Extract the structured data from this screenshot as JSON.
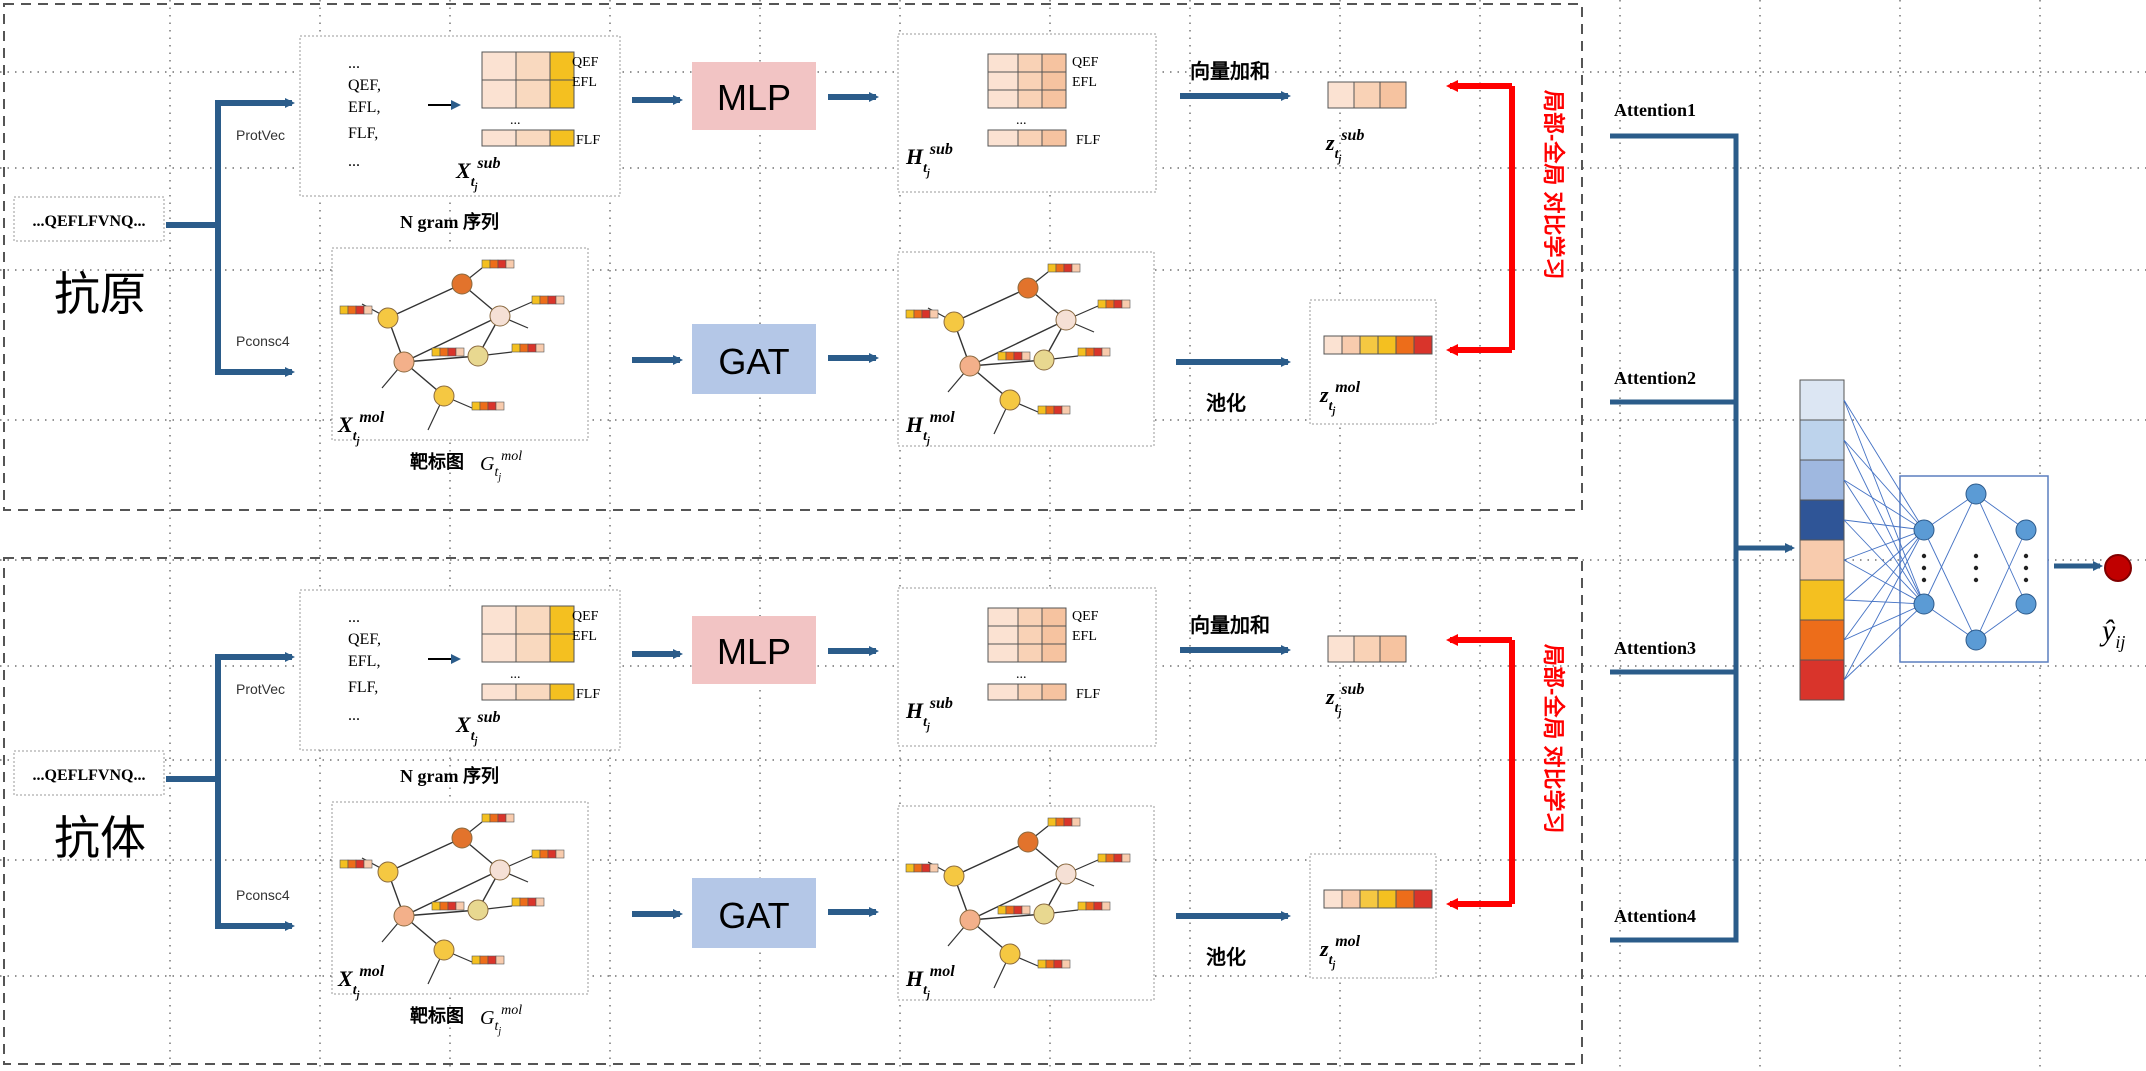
{
  "inputs": {
    "antigen": {
      "sequence": "...QEFLFVNQ...",
      "label": "抗原"
    },
    "antibody": {
      "sequence": "...QEFLFVNQ...",
      "label": "抗体"
    }
  },
  "branches": {
    "top_method": "ProtVec",
    "bottom_method": "Pconsc4"
  },
  "ngram": {
    "lines": [
      "...",
      "QEF,",
      "EFL,",
      "FLF,",
      "..."
    ],
    "row_labels": [
      "QEF",
      "EFL",
      "FLF"
    ],
    "ellipsis": "...",
    "caption": "N gram 序列"
  },
  "graph": {
    "caption": "靶标图"
  },
  "modules": {
    "mlp": "MLP",
    "gat": "GAT"
  },
  "operations": {
    "sum": "向量加和",
    "pool": "池化"
  },
  "contrast": {
    "label": "局部-全局 对比学习"
  },
  "attention": [
    "Attention1",
    "Attention2",
    "Attention3",
    "Attention4"
  ],
  "output": {
    "symbol": "ŷ"
  },
  "colors": {
    "arrow": "#2b5c8a",
    "contrast_arrow": "#ff0000",
    "mlp_box": "#f2c4c4",
    "gat_box": "#b4c7e7",
    "embedding": [
      "#dce6f3",
      "#bdd3ec",
      "#9fb8e0",
      "#2f5597",
      "#f8cbad",
      "#f4c020",
      "#ed6d1a",
      "#d9342b"
    ],
    "node_colors": [
      "#e2732c",
      "#f5c842",
      "#f3b08a",
      "#f5e0d5",
      "#e8d890"
    ]
  }
}
